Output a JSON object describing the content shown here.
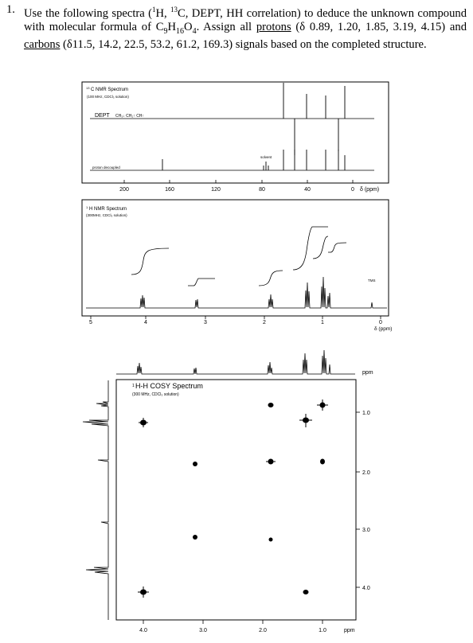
{
  "question": {
    "number": "1.",
    "part1": "Use the following spectra (",
    "h": "H, ",
    "c": "C, DEPT, HH correlation) to deduce the unknown compound with molecular formula of C",
    "formula_h": "H",
    "formula_o": "O",
    "part2": ". Assign all ",
    "protons_word": "protons",
    "protons_shifts": " (δ 0.89, 1.20, 1.85, 3.19, 4.15) and ",
    "carbons_word": "carbons",
    "carbons_shifts": " (δ11.5, 14.2, 22.5, 53.2, 61.2, 169.3) signals based on the completed structure.",
    "sup1": "1",
    "sup13": "13",
    "sub9": "9",
    "sub16": "16",
    "sub4": "4"
  },
  "c13": {
    "title": "C NMR Spectrum",
    "title_sup": "13",
    "conditions": "(100 MHz, CDCl₃ solution)",
    "dept_label": "DEPT",
    "dept_legend": "CH₃↓ CH₂↑ CH↑",
    "decoupled_label": "proton decoupled",
    "solvent_label": "solvent",
    "axis_ticks": [
      "200",
      "160",
      "120",
      "80",
      "40",
      "0"
    ],
    "axis_unit": "δ (ppm)"
  },
  "h1": {
    "title": "H NMR Spectrum",
    "title_sup": "1",
    "conditions": "(300MHz, CDCl₃ solution)",
    "tms_label": "TMS",
    "axis_ticks": [
      "5",
      "4",
      "3",
      "2",
      "1",
      "0"
    ],
    "axis_unit": "δ (ppm)"
  },
  "cosy": {
    "title": "H-H COSY Spectrum",
    "title_sup": "1",
    "title_sup2": "1",
    "conditions": "(300 MHz, CDCl₃ solution)",
    "x_ticks": [
      "4.0",
      "3.0",
      "2.0",
      "1.0"
    ],
    "x_unit": "ppm",
    "y_ticks": [
      "1.0",
      "2.0",
      "3.0",
      "4.0"
    ],
    "y_unit": "ppm"
  }
}
